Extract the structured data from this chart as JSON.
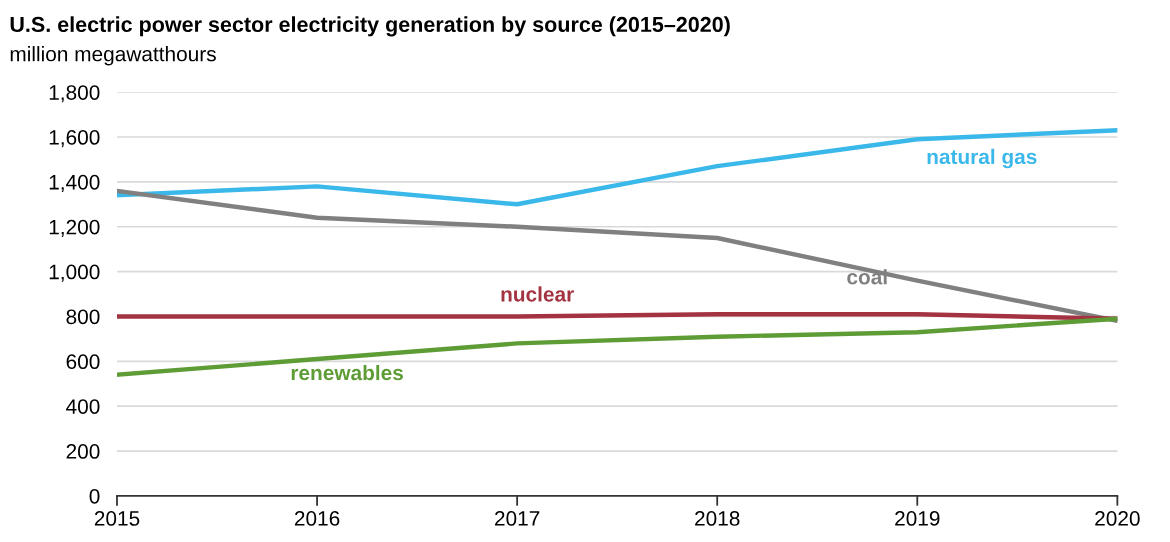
{
  "chart_data": {
    "type": "line",
    "title": "U.S. electric power sector electricity generation by source (2015–2020)",
    "ylabel": "million megawatthours",
    "x": [
      2015,
      2016,
      2017,
      2018,
      2019,
      2020
    ],
    "series": [
      {
        "name": "natural gas",
        "color": "#3bb8ea",
        "values": [
          1340,
          1380,
          1300,
          1470,
          1590,
          1630
        ]
      },
      {
        "name": "coal",
        "color": "#808080",
        "values": [
          1360,
          1240,
          1200,
          1150,
          960,
          780
        ]
      },
      {
        "name": "nuclear",
        "color": "#a33340",
        "values": [
          800,
          800,
          800,
          810,
          810,
          790
        ]
      },
      {
        "name": "renewables",
        "color": "#5e9c36",
        "values": [
          540,
          610,
          680,
          710,
          730,
          790
        ]
      }
    ],
    "xlim": [
      2015,
      2020
    ],
    "xticks": [
      2015,
      2016,
      2017,
      2018,
      2019,
      2020
    ],
    "ylim": [
      0,
      1800
    ],
    "yticks": [
      0,
      {
        "value": 200,
        "label": "200"
      },
      {
        "value": 400,
        "label": "400"
      },
      {
        "value": 600,
        "label": "600"
      },
      {
        "value": 800,
        "label": "800"
      },
      {
        "value": 1000,
        "label": "1,000"
      },
      {
        "value": 1200,
        "label": "1,200"
      },
      {
        "value": 1400,
        "label": "1,400"
      },
      {
        "value": 1600,
        "label": "1,600"
      },
      {
        "value": 1800,
        "label": "1,800"
      }
    ],
    "grid": "y",
    "line_style": "solid",
    "marker": "none",
    "legend": false
  }
}
